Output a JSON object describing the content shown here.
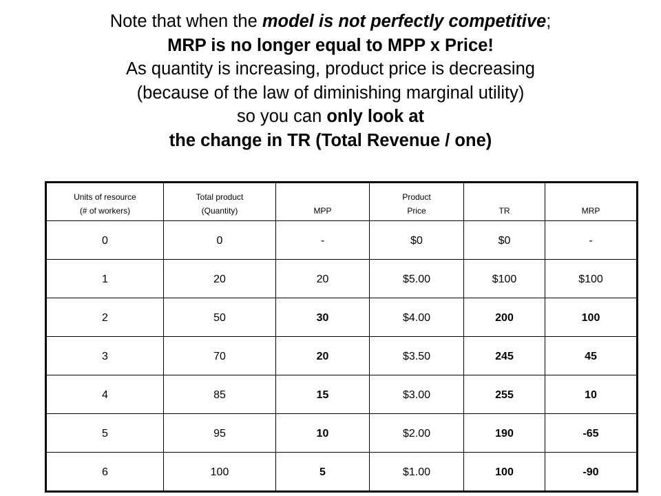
{
  "title": {
    "line1_pre": "Note that when the ",
    "line1_em": "model is not perfectly competitive",
    "line1_post": ";",
    "line2": "MRP is no longer equal to MPP x Price!",
    "line3": "As quantity is increasing, product price is decreasing",
    "line4": "(because of the law of diminishing marginal utility)",
    "line5_pre": "so you can ",
    "line5_bold": "only look at",
    "line6": "the change in TR (Total Revenue / one)"
  },
  "table": {
    "headers": [
      {
        "line1": "Units of resource",
        "line2": "(# of workers)"
      },
      {
        "line1": "Total product",
        "line2": "(Quantity)"
      },
      {
        "line1": "",
        "line2": "MPP"
      },
      {
        "line1": "Product",
        "line2": "Price"
      },
      {
        "line1": "",
        "line2": "TR"
      },
      {
        "line1": "",
        "line2": "MRP"
      }
    ],
    "rows": [
      [
        "0",
        "0",
        "-",
        "$0",
        "$0",
        "-"
      ],
      [
        "1",
        "20",
        "20",
        "$5.00",
        "$100",
        "$100"
      ],
      [
        "2",
        "50",
        "30",
        "$4.00",
        "200",
        "100"
      ],
      [
        "3",
        "70",
        "20",
        "$3.50",
        "245",
        "45"
      ],
      [
        "4",
        "85",
        "15",
        "$3.00",
        "255",
        "10"
      ],
      [
        "5",
        "95",
        "10",
        "$2.00",
        "190",
        "-65"
      ],
      [
        "6",
        "100",
        "5",
        "$1.00",
        "100",
        "-90"
      ]
    ]
  }
}
